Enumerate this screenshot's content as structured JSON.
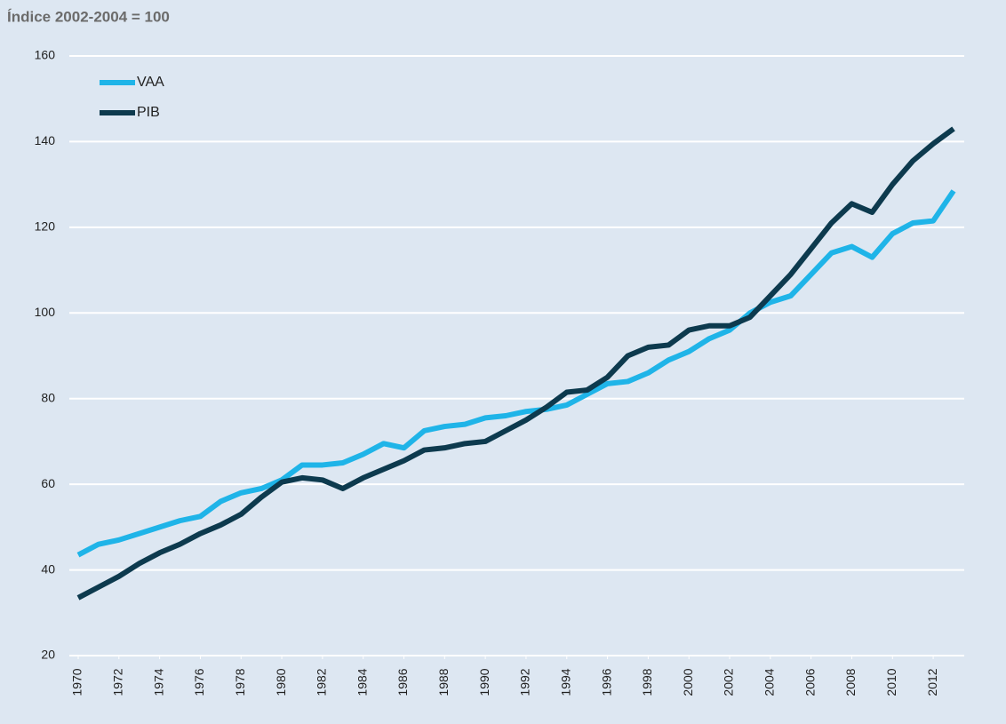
{
  "chart_data": {
    "type": "line",
    "title": "Índice 2002-2004 = 100",
    "x": [
      1970,
      1971,
      1972,
      1973,
      1974,
      1975,
      1976,
      1977,
      1978,
      1979,
      1980,
      1981,
      1982,
      1983,
      1984,
      1985,
      1986,
      1987,
      1988,
      1989,
      1990,
      1991,
      1992,
      1993,
      1994,
      1995,
      1996,
      1997,
      1998,
      1999,
      2000,
      2001,
      2002,
      2003,
      2004,
      2005,
      2006,
      2007,
      2008,
      2009,
      2010,
      2011,
      2012,
      2013
    ],
    "series": [
      {
        "name": "VAA",
        "color": "#1fb4e8",
        "values": [
          43.5,
          46,
          47,
          48.5,
          50,
          51.5,
          52.5,
          56,
          58,
          59,
          61,
          64.5,
          64.5,
          65,
          67,
          69.5,
          68.5,
          72.5,
          73.5,
          74,
          75.5,
          76,
          77,
          77.5,
          78.5,
          81,
          83.5,
          84,
          86,
          89,
          91,
          94,
          96,
          100,
          102.5,
          104,
          109,
          114,
          115.5,
          113,
          118.5,
          121,
          121.5,
          128.5
        ]
      },
      {
        "name": "PIB",
        "color": "#0d3a4e",
        "values": [
          33.5,
          36,
          38.5,
          41.5,
          44,
          46,
          48.5,
          50.5,
          53,
          57,
          60.5,
          61.5,
          61,
          59,
          61.5,
          63.5,
          65.5,
          68,
          68.5,
          69.5,
          70,
          72.5,
          75,
          78,
          81.5,
          82,
          85,
          90,
          92,
          92.5,
          96,
          97,
          97,
          99,
          104,
          109,
          115,
          121,
          125.5,
          123.5,
          130,
          135.5,
          139.5,
          143
        ]
      }
    ],
    "xlim": [
      1970,
      2013
    ],
    "xticks": [
      1970,
      1972,
      1974,
      1976,
      1978,
      1980,
      1982,
      1984,
      1986,
      1988,
      1990,
      1992,
      1994,
      1996,
      1998,
      2000,
      2002,
      2004,
      2006,
      2008,
      2010,
      2012
    ],
    "ylim": [
      20,
      160
    ],
    "yticks": [
      20,
      40,
      60,
      80,
      100,
      120,
      140,
      160
    ],
    "grid": true,
    "legend": "upper left"
  }
}
